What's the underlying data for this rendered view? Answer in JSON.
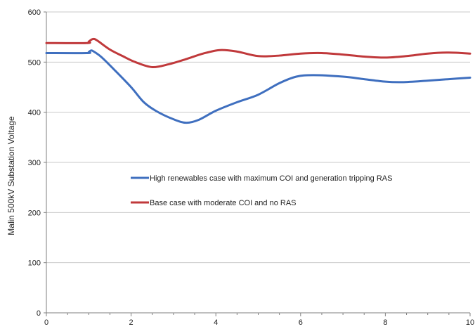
{
  "chart_data": {
    "type": "line",
    "title": "",
    "xlabel": "",
    "ylabel": "Malin 500kV Substation Voltage",
    "xlim": [
      0,
      10
    ],
    "ylim": [
      0,
      600
    ],
    "x_ticks": [
      "0",
      "2",
      "4",
      "6",
      "8",
      "10"
    ],
    "y_ticks": [
      "0",
      "100",
      "200",
      "300",
      "400",
      "500",
      "600"
    ],
    "grid": "horizontal",
    "legend": "center",
    "series": [
      {
        "name": "High renewables case with maximum COI and generation tripping RAS",
        "color": "#3f6fbf",
        "points": [
          [
            0,
            518
          ],
          [
            0.95,
            518
          ],
          [
            1.0,
            520
          ],
          [
            1.05,
            523
          ],
          [
            1.1,
            522
          ],
          [
            1.3,
            510
          ],
          [
            1.6,
            485
          ],
          [
            2.0,
            450
          ],
          [
            2.3,
            420
          ],
          [
            2.6,
            402
          ],
          [
            3.0,
            386
          ],
          [
            3.3,
            379
          ],
          [
            3.6,
            385
          ],
          [
            4.0,
            403
          ],
          [
            4.5,
            420
          ],
          [
            5.0,
            435
          ],
          [
            5.5,
            458
          ],
          [
            5.9,
            471
          ],
          [
            6.3,
            474
          ],
          [
            7.0,
            471
          ],
          [
            7.5,
            466
          ],
          [
            8.0,
            461
          ],
          [
            8.4,
            460
          ],
          [
            9.0,
            463
          ],
          [
            9.5,
            466
          ],
          [
            10.0,
            469
          ]
        ]
      },
      {
        "name": "Base case with moderate COI and no RAS",
        "color": "#c0393b",
        "points": [
          [
            0,
            538
          ],
          [
            0.95,
            538
          ],
          [
            1.0,
            541
          ],
          [
            1.1,
            546
          ],
          [
            1.2,
            543
          ],
          [
            1.5,
            525
          ],
          [
            1.8,
            512
          ],
          [
            2.1,
            500
          ],
          [
            2.5,
            490
          ],
          [
            2.9,
            496
          ],
          [
            3.3,
            506
          ],
          [
            3.7,
            517
          ],
          [
            4.1,
            524
          ],
          [
            4.5,
            521
          ],
          [
            5.0,
            512
          ],
          [
            5.5,
            513
          ],
          [
            6.0,
            517
          ],
          [
            6.5,
            518
          ],
          [
            7.0,
            515
          ],
          [
            7.5,
            511
          ],
          [
            8.0,
            509
          ],
          [
            8.5,
            512
          ],
          [
            9.0,
            517
          ],
          [
            9.5,
            519
          ],
          [
            10.0,
            517
          ]
        ]
      }
    ]
  }
}
